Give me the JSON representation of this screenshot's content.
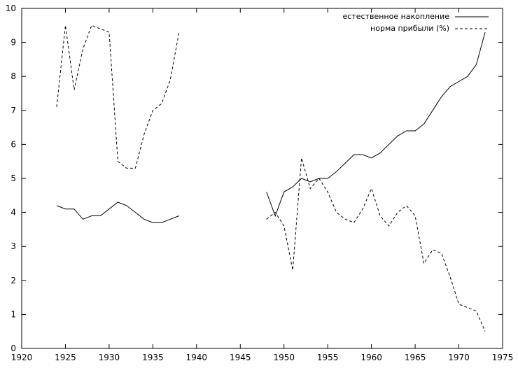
{
  "chart_data": {
    "type": "line",
    "title": "",
    "xlabel": "",
    "ylabel": "",
    "xlim": [
      1920,
      1975
    ],
    "ylim": [
      0,
      10
    ],
    "grid": false,
    "legend_position": "top-right",
    "x_ticks": [
      "1920",
      "1925",
      "1930",
      "1935",
      "1940",
      "1945",
      "1950",
      "1955",
      "1960",
      "1965",
      "1970",
      "1975"
    ],
    "y_ticks": [
      "0",
      "1",
      "2",
      "3",
      "4",
      "5",
      "6",
      "7",
      "8",
      "9",
      "10"
    ],
    "series": [
      {
        "name": "естественное накопление",
        "style": "solid",
        "segments": [
          [
            [
              1924,
              4.2
            ],
            [
              1925,
              4.1
            ],
            [
              1926,
              4.1
            ],
            [
              1927,
              3.8
            ],
            [
              1928,
              3.9
            ],
            [
              1929,
              3.9
            ],
            [
              1930,
              4.1
            ],
            [
              1931,
              4.3
            ],
            [
              1932,
              4.2
            ],
            [
              1933,
              4.0
            ],
            [
              1934,
              3.8
            ],
            [
              1935,
              3.7
            ],
            [
              1936,
              3.7
            ],
            [
              1937,
              3.8
            ],
            [
              1938,
              3.9
            ]
          ],
          [
            [
              1948,
              4.6
            ],
            [
              1949,
              3.9
            ],
            [
              1950,
              4.6
            ],
            [
              1951,
              4.75
            ],
            [
              1952,
              5.0
            ],
            [
              1953,
              4.9
            ],
            [
              1954,
              5.0
            ],
            [
              1955,
              5.0
            ],
            [
              1956,
              5.2
            ],
            [
              1957,
              5.45
            ],
            [
              1958,
              5.7
            ],
            [
              1959,
              5.7
            ],
            [
              1960,
              5.6
            ],
            [
              1961,
              5.75
            ],
            [
              1962,
              6.0
            ],
            [
              1963,
              6.25
            ],
            [
              1964,
              6.4
            ],
            [
              1965,
              6.4
            ],
            [
              1966,
              6.6
            ],
            [
              1967,
              7.0
            ],
            [
              1968,
              7.4
            ],
            [
              1969,
              7.7
            ],
            [
              1970,
              7.85
            ],
            [
              1971,
              8.0
            ],
            [
              1972,
              8.35
            ],
            [
              1973,
              9.3
            ]
          ]
        ]
      },
      {
        "name": "норма прибыли (%)",
        "style": "dashed",
        "segments": [
          [
            [
              1924,
              7.1
            ],
            [
              1925,
              9.5
            ],
            [
              1926,
              7.6
            ],
            [
              1927,
              8.8
            ],
            [
              1928,
              9.5
            ],
            [
              1929,
              9.4
            ],
            [
              1930,
              9.3
            ],
            [
              1931,
              5.5
            ],
            [
              1932,
              5.3
            ],
            [
              1933,
              5.3
            ],
            [
              1934,
              6.3
            ],
            [
              1935,
              7.0
            ],
            [
              1936,
              7.2
            ],
            [
              1937,
              7.9
            ],
            [
              1938,
              9.3
            ]
          ],
          [
            [
              1948,
              3.8
            ],
            [
              1949,
              4.0
            ],
            [
              1950,
              3.6
            ],
            [
              1951,
              2.3
            ],
            [
              1952,
              5.6
            ],
            [
              1953,
              4.7
            ],
            [
              1954,
              5.0
            ],
            [
              1955,
              4.6
            ],
            [
              1956,
              4.0
            ],
            [
              1957,
              3.8
            ],
            [
              1958,
              3.7
            ],
            [
              1959,
              4.1
            ],
            [
              1960,
              4.7
            ],
            [
              1961,
              3.9
            ],
            [
              1962,
              3.6
            ],
            [
              1963,
              4.0
            ],
            [
              1964,
              4.2
            ],
            [
              1965,
              3.9
            ],
            [
              1966,
              2.5
            ],
            [
              1967,
              2.9
            ],
            [
              1968,
              2.8
            ],
            [
              1969,
              2.1
            ],
            [
              1970,
              1.3
            ],
            [
              1971,
              1.2
            ],
            [
              1972,
              1.1
            ],
            [
              1973,
              0.5
            ]
          ]
        ]
      }
    ]
  }
}
